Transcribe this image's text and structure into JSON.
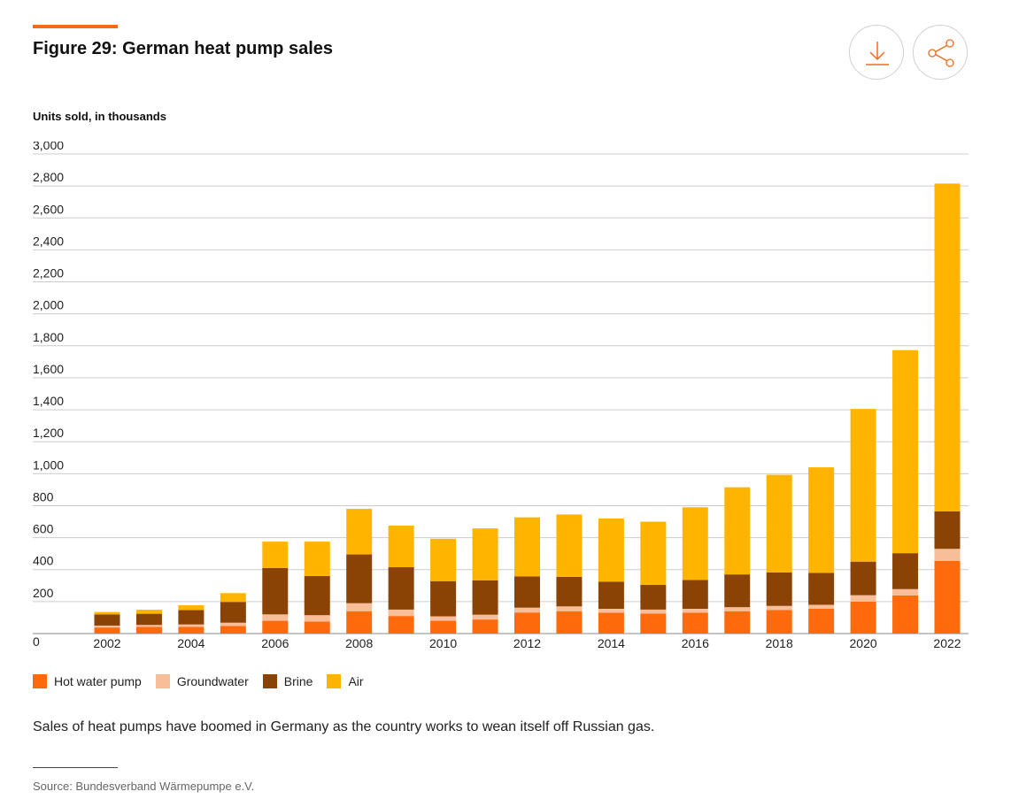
{
  "header": {
    "title": "Figure 29: German heat pump sales",
    "accent_color": "#f26a1b",
    "download_icon": "download-icon",
    "share_icon": "share-icon"
  },
  "units_label": "Units sold, in thousands",
  "caption": "Sales of heat pumps have boomed in Germany as the country works to wean itself off Russian gas.",
  "source": "Source: Bundesverband Wärmepumpe e.V.",
  "chart_data": {
    "type": "bar",
    "stacked": true,
    "title": "Figure 29: German heat pump sales",
    "ylabel": "Units sold, in thousands",
    "ylim": [
      0,
      3000
    ],
    "yticks": [
      0,
      200,
      400,
      600,
      800,
      1000,
      1200,
      1400,
      1600,
      1800,
      2000,
      2200,
      2400,
      2600,
      2800,
      3000
    ],
    "ytick_labels": [
      "0",
      "200",
      "400",
      "600",
      "800",
      "1,000",
      "1,200",
      "1,400",
      "1,600",
      "1,800",
      "2,000",
      "2,200",
      "2,400",
      "2,600",
      "2,800",
      "3,000"
    ],
    "categories": [
      "2002",
      "2003",
      "2004",
      "2005",
      "2006",
      "2007",
      "2008",
      "2009",
      "2010",
      "2011",
      "2012",
      "2013",
      "2014",
      "2015",
      "2016",
      "2017",
      "2018",
      "2019",
      "2020",
      "2021",
      "2022"
    ],
    "xtick_labels": [
      "2002",
      "",
      "2004",
      "",
      "2006",
      "",
      "2008",
      "",
      "2010",
      "",
      "2012",
      "",
      "2014",
      "",
      "2016",
      "",
      "2018",
      "",
      "2020",
      "",
      "2022"
    ],
    "grid": true,
    "legend_position": "bottom-left",
    "series": [
      {
        "name": "Hot water pump",
        "color": "#ff6a0d",
        "values": [
          38,
          42,
          42,
          48,
          80,
          75,
          140,
          110,
          80,
          88,
          132,
          140,
          130,
          125,
          130,
          140,
          148,
          155,
          200,
          238,
          455
        ]
      },
      {
        "name": "Groundwater",
        "color": "#f8bd99",
        "values": [
          12,
          12,
          15,
          20,
          40,
          40,
          50,
          40,
          28,
          30,
          30,
          30,
          25,
          25,
          25,
          25,
          25,
          25,
          40,
          40,
          75
        ]
      },
      {
        "name": "Brine",
        "color": "#8a4205",
        "values": [
          70,
          70,
          90,
          130,
          290,
          245,
          305,
          265,
          220,
          215,
          195,
          185,
          170,
          155,
          180,
          205,
          210,
          200,
          210,
          225,
          235
        ]
      },
      {
        "name": "Air",
        "color": "#ffb500",
        "values": [
          15,
          25,
          30,
          55,
          165,
          215,
          285,
          260,
          265,
          325,
          370,
          390,
          395,
          395,
          455,
          545,
          610,
          660,
          955,
          1270,
          2050
        ]
      }
    ]
  }
}
